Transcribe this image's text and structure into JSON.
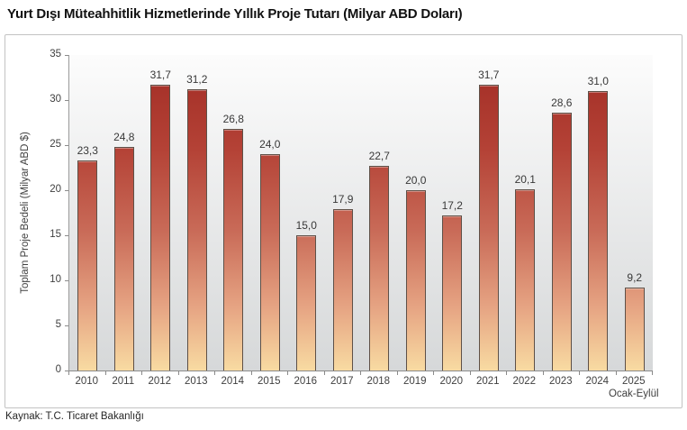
{
  "title": "Yurt Dışı Müteahhitlik Hizmetlerinde Yıllık Proje Tutarı (Milyar ABD Doları)",
  "source": "Kaynak: T.C. Ticaret Bakanlığı",
  "chart_data": {
    "type": "bar",
    "title": "Yurt Dışı Müteahhitlik Hizmetlerinde Yıllık Proje Tutarı (Milyar ABD Doları)",
    "ylabel": "Toplam Proje Bedeli (Milyar ABD $)",
    "xlabel": "",
    "ylim": [
      0,
      35
    ],
    "yticks": [
      0,
      5,
      10,
      15,
      20,
      25,
      30,
      35
    ],
    "grid": false,
    "legend_position": "none",
    "categories": [
      "2010",
      "2011",
      "2012",
      "2013",
      "2014",
      "2015",
      "2016",
      "2017",
      "2018",
      "2019",
      "2020",
      "2021",
      "2022",
      "2023",
      "2024",
      "2025"
    ],
    "sublabels": [
      "",
      "",
      "",
      "",
      "",
      "",
      "",
      "",
      "",
      "",
      "",
      "",
      "",
      "",
      "",
      "Ocak-Eylül"
    ],
    "values": [
      23.3,
      24.8,
      31.7,
      31.2,
      26.8,
      24.0,
      15.0,
      17.9,
      22.7,
      20.0,
      17.2,
      31.7,
      20.1,
      28.6,
      31.0,
      9.2
    ],
    "value_labels": [
      "23,3",
      "24,8",
      "31,7",
      "31,2",
      "26,8",
      "24,0",
      "15,0",
      "17,9",
      "22,7",
      "20,0",
      "17,2",
      "31,7",
      "20,1",
      "28,6",
      "31,0",
      "9,2"
    ],
    "colors": {
      "bar_gradient_stops": [
        "#a12b24 0%",
        "#b44236 30%",
        "#c96b58 56%",
        "#e6a483 80%",
        "#f8dba2 100%"
      ],
      "bar_border": "#5e5047",
      "plot_bg_top": "#fcfcfc",
      "plot_bg_bottom": "#d6d8d9",
      "frame_border": "#c3c3c3",
      "axis": "#8a8a8a",
      "text": "#3f3f3f"
    }
  }
}
